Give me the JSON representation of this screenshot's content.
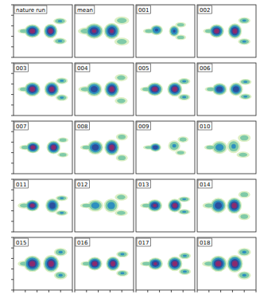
{
  "chart_data": {
    "type": "contour",
    "tick_labels": false,
    "xlim": [
      0,
      10
    ],
    "ylim": [
      0,
      10
    ],
    "xticks": [
      0,
      2,
      4,
      6,
      8,
      10
    ],
    "yticks": [
      0,
      2,
      4,
      6,
      8,
      10
    ],
    "levels": [
      0.15,
      0.35,
      0.55,
      0.75,
      0.9
    ],
    "colors": [
      "#dcefc4",
      "#7fcaa8",
      "#2e8fbf",
      "#2b4f9e",
      "#8a2a6e"
    ],
    "panels": [
      {
        "label": "nature run",
        "blobs": [
          [
            1.8,
            5,
            2.6,
            1.2,
            0.5
          ],
          [
            3.2,
            5,
            3,
            2.8,
            1
          ],
          [
            6.3,
            5,
            2.6,
            3,
            1
          ],
          [
            7.9,
            6.9,
            2.6,
            1.4,
            0.6
          ],
          [
            7.9,
            3.1,
            2.6,
            1.4,
            0.6
          ]
        ]
      },
      {
        "label": "mean",
        "blobs": [
          [
            1.8,
            5,
            3,
            1.6,
            0.5
          ],
          [
            3.3,
            5,
            3.4,
            3.2,
            0.95
          ],
          [
            6.3,
            5,
            3,
            3.4,
            0.95
          ],
          [
            8,
            7,
            3,
            1.8,
            0.5
          ],
          [
            8,
            3,
            3,
            1.8,
            0.5
          ]
        ]
      },
      {
        "label": "001",
        "blobs": [
          [
            2.2,
            5,
            2.4,
            1.2,
            0.5
          ],
          [
            3.5,
            5.2,
            2.4,
            2.2,
            0.8
          ],
          [
            6.5,
            5,
            2,
            2.4,
            0.8
          ],
          [
            7.6,
            6.2,
            2.2,
            1.2,
            0.5
          ],
          [
            7.6,
            3.8,
            2.2,
            1.2,
            0.5
          ]
        ]
      },
      {
        "label": "002",
        "blobs": [
          [
            2,
            5,
            2.4,
            1.2,
            0.5
          ],
          [
            3.3,
            5,
            2.8,
            2.8,
            1
          ],
          [
            6.4,
            5,
            2.6,
            3.2,
            1
          ],
          [
            8,
            7,
            2.4,
            1.4,
            0.6
          ],
          [
            8,
            3,
            2.4,
            1.4,
            0.6
          ]
        ]
      },
      {
        "label": "003",
        "blobs": [
          [
            1.8,
            5,
            2.6,
            1.2,
            0.5
          ],
          [
            3.2,
            5,
            3,
            3,
            1
          ],
          [
            6.5,
            5,
            2.8,
            3.2,
            1
          ],
          [
            8.2,
            6.6,
            2.4,
            1.4,
            0.6
          ],
          [
            8.2,
            3.4,
            2.4,
            1.4,
            0.6
          ]
        ]
      },
      {
        "label": "004",
        "blobs": [
          [
            1.8,
            5,
            2.8,
            1.4,
            0.5
          ],
          [
            3.3,
            5,
            3,
            3,
            0.9
          ],
          [
            6.3,
            5,
            2.8,
            3.4,
            1
          ],
          [
            7.9,
            7.2,
            2.6,
            1.6,
            0.5
          ],
          [
            7.9,
            2.8,
            2.6,
            1.6,
            0.5
          ]
        ]
      },
      {
        "label": "005",
        "blobs": [
          [
            1.8,
            5,
            2.6,
            1.2,
            0.5
          ],
          [
            3.2,
            5,
            3,
            2.8,
            1
          ],
          [
            6.6,
            5,
            2.8,
            3,
            1
          ],
          [
            8.2,
            6.5,
            2.4,
            1.4,
            0.6
          ],
          [
            8.2,
            3.5,
            2.4,
            1.4,
            0.6
          ]
        ]
      },
      {
        "label": "006",
        "blobs": [
          [
            2.3,
            5,
            2.4,
            1.2,
            0.5
          ],
          [
            3.8,
            5,
            2.8,
            2.6,
            0.9
          ],
          [
            6.6,
            5,
            2.6,
            2.8,
            0.9
          ],
          [
            8.2,
            6.4,
            2.4,
            1.3,
            0.6
          ],
          [
            8.2,
            3.6,
            2.4,
            1.3,
            0.6
          ]
        ]
      },
      {
        "label": "007",
        "blobs": [
          [
            2,
            5,
            2.4,
            1.2,
            0.5
          ],
          [
            3.3,
            5,
            2.6,
            2.4,
            1
          ],
          [
            6.8,
            5,
            2.6,
            2.8,
            1
          ],
          [
            8.4,
            6.4,
            2.2,
            1.2,
            0.5
          ],
          [
            8.4,
            3.6,
            2.2,
            1.2,
            0.5
          ]
        ]
      },
      {
        "label": "008",
        "blobs": [
          [
            2,
            5,
            2.6,
            1.2,
            0.5
          ],
          [
            3.5,
            5,
            3,
            3,
            0.9
          ],
          [
            6.3,
            5,
            2.8,
            3.4,
            1
          ],
          [
            8,
            7,
            2.4,
            1.6,
            0.5
          ],
          [
            8,
            3,
            2.4,
            1.6,
            0.5
          ]
        ]
      },
      {
        "label": "009",
        "blobs": [
          [
            2.2,
            5,
            2.4,
            1,
            0.5
          ],
          [
            3.3,
            5,
            2.2,
            1.8,
            0.9
          ],
          [
            6.5,
            5.3,
            2.4,
            2.4,
            0.6
          ],
          [
            8,
            6.5,
            2.2,
            1.4,
            0.5
          ],
          [
            7.6,
            4,
            2.2,
            1.2,
            0.5
          ]
        ]
      },
      {
        "label": "010",
        "blobs": [
          [
            2.2,
            5,
            2.4,
            1.2,
            0.5
          ],
          [
            3.8,
            5,
            3,
            2.8,
            0.7
          ],
          [
            6.2,
            5.2,
            2.6,
            3,
            0.6
          ],
          [
            8,
            6.8,
            2.6,
            1.8,
            0.5
          ],
          [
            7.8,
            3.6,
            2.6,
            1.4,
            0.5
          ]
        ]
      },
      {
        "label": "011",
        "blobs": [
          [
            1.8,
            5,
            2.6,
            1.4,
            0.5
          ],
          [
            3.2,
            5,
            2.6,
            2.4,
            1
          ],
          [
            6.6,
            5,
            2.6,
            3,
            0.9
          ],
          [
            8.2,
            6.4,
            2.4,
            1.2,
            0.6
          ],
          [
            8.2,
            3.6,
            2.4,
            1.2,
            0.6
          ]
        ]
      },
      {
        "label": "012",
        "blobs": [
          [
            2,
            5,
            2.6,
            1.2,
            0.5
          ],
          [
            3.5,
            5,
            3,
            2.6,
            0.7
          ],
          [
            6.2,
            5,
            2.8,
            3,
            0.7
          ],
          [
            7.9,
            6.6,
            2.6,
            1.6,
            0.5
          ],
          [
            7.9,
            3.6,
            2.6,
            1.4,
            0.5
          ]
        ]
      },
      {
        "label": "013",
        "blobs": [
          [
            1.8,
            5,
            2.6,
            1.2,
            0.5
          ],
          [
            3.2,
            5,
            2.8,
            2.6,
            0.95
          ],
          [
            6.6,
            5,
            2.6,
            2.8,
            1
          ],
          [
            8.2,
            6.2,
            2.4,
            1.2,
            0.6
          ],
          [
            8.2,
            3.8,
            2.4,
            1.2,
            0.6
          ]
        ]
      },
      {
        "label": "014",
        "blobs": [
          [
            2,
            5,
            2.6,
            1.4,
            0.5
          ],
          [
            3.6,
            5,
            3,
            3.2,
            0.9
          ],
          [
            6.3,
            5,
            2.8,
            3.4,
            1
          ],
          [
            8,
            7.1,
            2.4,
            1.6,
            0.5
          ],
          [
            8,
            2.9,
            2.4,
            1.6,
            0.5
          ]
        ]
      },
      {
        "label": "015",
        "blobs": [
          [
            1.8,
            5,
            2.6,
            1.4,
            0.5
          ],
          [
            3.2,
            5,
            3.2,
            3.4,
            1
          ],
          [
            6.4,
            5,
            3,
            3.6,
            1
          ],
          [
            8,
            7.2,
            2.6,
            1.8,
            0.6
          ],
          [
            8,
            2.8,
            2.6,
            1.8,
            0.6
          ]
        ]
      },
      {
        "label": "016",
        "blobs": [
          [
            2,
            5,
            2.4,
            1.2,
            0.5
          ],
          [
            3.4,
            5,
            2.8,
            2.8,
            1
          ],
          [
            6.5,
            5,
            2.6,
            3,
            1
          ],
          [
            8.1,
            6.8,
            2.4,
            1.4,
            0.6
          ],
          [
            8.1,
            3.2,
            2.4,
            1.4,
            0.6
          ]
        ]
      },
      {
        "label": "017",
        "blobs": [
          [
            1.8,
            5,
            2.6,
            1.2,
            0.5
          ],
          [
            3.3,
            5,
            2.8,
            2.6,
            0.95
          ],
          [
            6.6,
            5,
            2.8,
            3,
            1
          ],
          [
            8.3,
            6.5,
            2.4,
            1.4,
            0.6
          ],
          [
            8.3,
            3.5,
            2.4,
            1.4,
            0.6
          ]
        ]
      },
      {
        "label": "018",
        "blobs": [
          [
            2,
            5,
            2.8,
            1.4,
            0.5
          ],
          [
            3.6,
            5,
            3.2,
            3.4,
            1
          ],
          [
            6.4,
            5,
            3,
            3.6,
            1
          ],
          [
            8,
            7.2,
            2.6,
            1.8,
            0.6
          ],
          [
            8,
            2.8,
            2.6,
            1.8,
            0.6
          ]
        ]
      }
    ]
  }
}
